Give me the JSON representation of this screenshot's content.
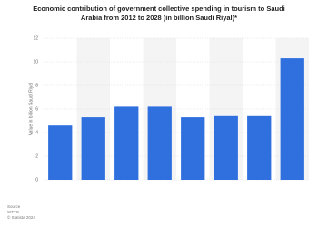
{
  "chart_data": {
    "type": "bar",
    "title": "Economic contribution of government collective spending in tourism to Saudi Arabia from 2012 to 2028 (in billion Saudi Riyal)*",
    "y_label": "Value in billion Saudi Riyal",
    "source": [
      "Source",
      "WTTC",
      "© Statista 2024"
    ],
    "categories": [
      null,
      null,
      null,
      null,
      null,
      null,
      null,
      null
    ],
    "values": [
      4.6,
      5.3,
      6.2,
      6.2,
      5.3,
      5.4,
      5.4,
      10.3
    ],
    "color": "#2f6fde",
    "ylim": [
      0,
      12
    ],
    "yticks": [
      0,
      2,
      4,
      6,
      8,
      10,
      12
    ],
    "grid": true
  }
}
